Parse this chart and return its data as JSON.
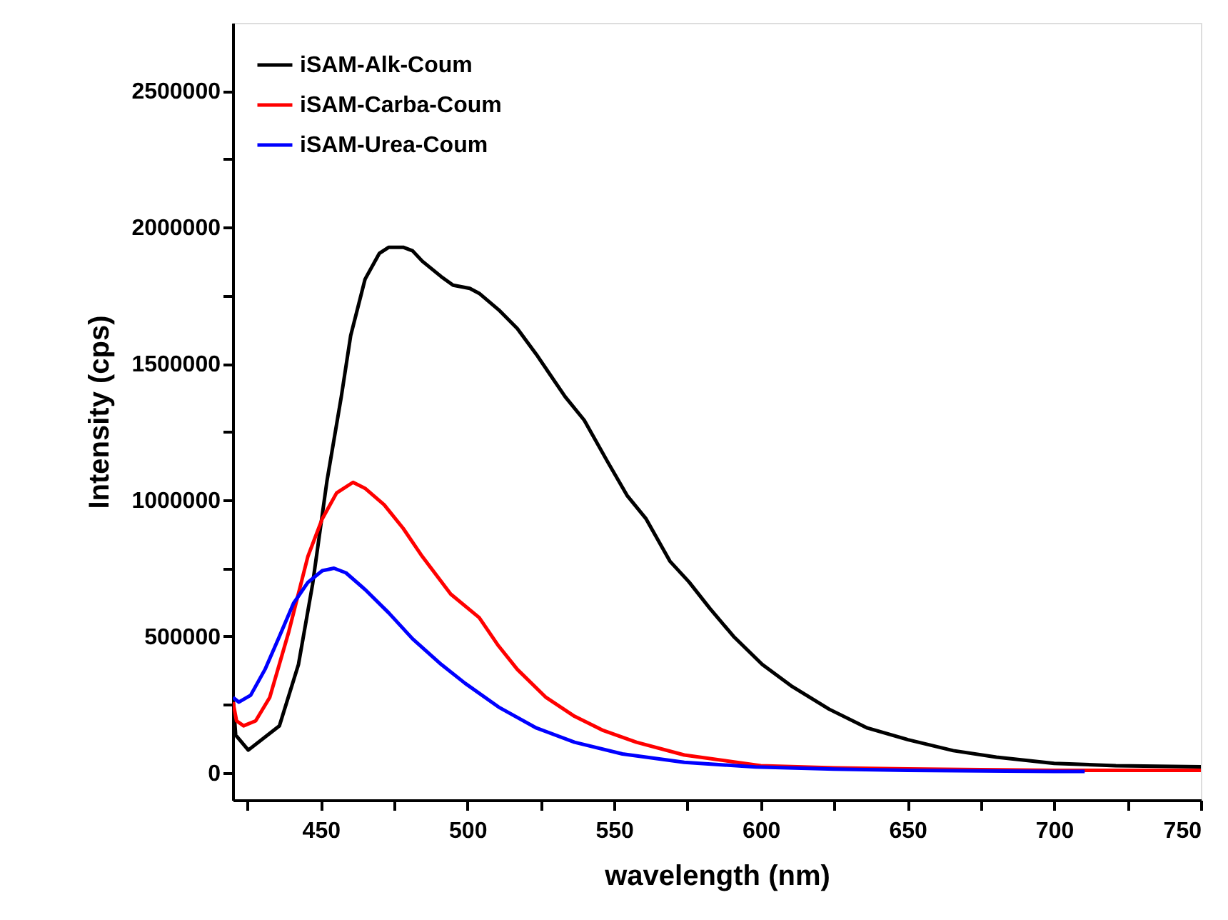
{
  "chart_data": {
    "type": "line",
    "xlabel": "wavelength (nm)",
    "ylabel": "Intensity (cps)",
    "xlim": [
      420,
      750
    ],
    "ylim": [
      -100000,
      2750000
    ],
    "xticks": [
      {
        "value": 425,
        "label": null
      },
      450,
      {
        "value": 475,
        "label": null
      },
      500,
      {
        "value": 525,
        "label": null
      },
      550,
      {
        "value": 575,
        "label": null
      },
      600,
      {
        "value": 625,
        "label": null
      },
      650,
      {
        "value": 675,
        "label": null
      },
      700,
      {
        "value": 725,
        "label": null
      },
      750
    ],
    "yticks": [
      0,
      {
        "value": 250000,
        "label": null
      },
      500000,
      {
        "value": 750000,
        "label": null
      },
      1000000,
      {
        "value": 1250000,
        "label": null
      },
      1500000,
      {
        "value": 1750000,
        "label": null
      },
      2000000,
      {
        "value": 2250000,
        "label": null
      },
      2500000
    ],
    "grid": false,
    "legend": "top left",
    "marker": "none",
    "line_style": "solid",
    "series": [
      {
        "name": "iSAM-Alk-Coum",
        "color": "#000000",
        "x": [
          420.1,
          421,
          425.3,
          435.9,
          442.4,
          447.2,
          452.1,
          457,
          460.2,
          465.1,
          470,
          473.2,
          478.1,
          481.3,
          484.6,
          491.1,
          495.1,
          500.8,
          504,
          510.6,
          517,
          523.5,
          533.3,
          539.8,
          547.9,
          554.4,
          560.9,
          569,
          575.5,
          582.6,
          590.7,
          600.5,
          610.3,
          623.3,
          636.3,
          650.2,
          665.6,
          680.3,
          700,
          721,
          750
        ],
        "values": [
          276000,
          138000,
          83000,
          172000,
          397000,
          690000,
          1069000,
          1379000,
          1603000,
          1810000,
          1905000,
          1927000,
          1927000,
          1914000,
          1876000,
          1819000,
          1788000,
          1776000,
          1758000,
          1698000,
          1629000,
          1534000,
          1379000,
          1293000,
          1138000,
          1017000,
          931000,
          776000,
          700000,
          603000,
          500000,
          397000,
          319000,
          233000,
          164000,
          121000,
          81000,
          57000,
          34000,
          26000,
          22000
        ]
      },
      {
        "name": "iSAM-Carba-Coum",
        "color": "#ff0000",
        "x": [
          420.1,
          421.3,
          423.7,
          427.8,
          432.6,
          439.1,
          445.6,
          450.5,
          455.4,
          461,
          465.1,
          471.6,
          478.1,
          484.6,
          494.3,
          504,
          510.6,
          517,
          526.8,
          536.5,
          546.3,
          557.6,
          573.9,
          600,
          625,
          650,
          700,
          750
        ],
        "values": [
          259000,
          190000,
          172000,
          190000,
          276000,
          517000,
          793000,
          931000,
          1026000,
          1065000,
          1043000,
          983000,
          896000,
          793000,
          655000,
          569000,
          465000,
          379000,
          276000,
          207000,
          155000,
          112000,
          65000,
          26000,
          18000,
          14000,
          9000,
          9000
        ]
      },
      {
        "name": "iSAM-Urea-Coum",
        "color": "#0000ff",
        "x": [
          420.1,
          422.1,
          426.1,
          431,
          435.9,
          440.7,
          445.6,
          450.5,
          454.5,
          458.6,
          465.1,
          473.2,
          481.3,
          491.1,
          499.2,
          510.6,
          523.5,
          536.5,
          552.8,
          573.9,
          598.2,
          625,
          650,
          700,
          710.4
        ],
        "values": [
          276000,
          259000,
          284000,
          379000,
          500000,
          621000,
          698000,
          741000,
          750000,
          733000,
          672000,
          586000,
          491000,
          397000,
          328000,
          241000,
          164000,
          112000,
          69000,
          38000,
          21000,
          13000,
          9000,
          5000,
          5000
        ]
      }
    ]
  }
}
